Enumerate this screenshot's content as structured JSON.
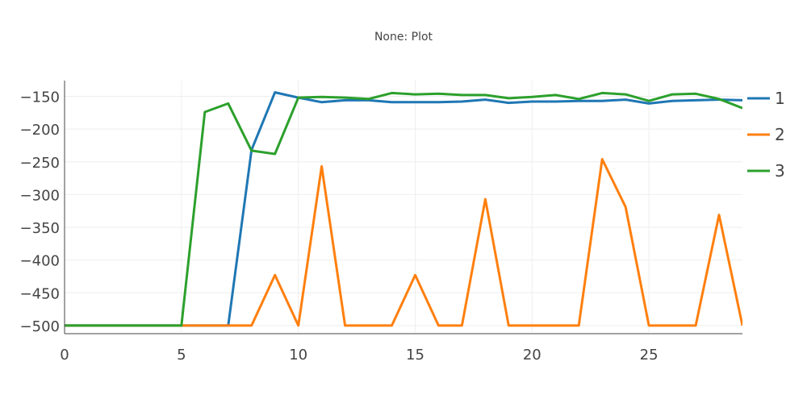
{
  "chart_data": {
    "type": "line",
    "title": "None: Plot",
    "xlabel": "",
    "ylabel": "",
    "xlim": [
      0,
      29
    ],
    "ylim": [
      -510,
      -126
    ],
    "x_ticks": [
      0,
      5,
      10,
      15,
      20,
      25
    ],
    "y_ticks": [
      -150,
      -200,
      -250,
      -300,
      -350,
      -400,
      -450,
      -500
    ],
    "x_tick_labels": [
      "0",
      "5",
      "10",
      "15",
      "20",
      "25"
    ],
    "y_tick_labels": [
      "−150",
      "−200",
      "−250",
      "−300",
      "−350",
      "−400",
      "−450",
      "−500"
    ],
    "grid": true,
    "legend_position": "right",
    "x": [
      0,
      1,
      2,
      3,
      4,
      5,
      6,
      7,
      8,
      9,
      10,
      11,
      12,
      13,
      14,
      15,
      16,
      17,
      18,
      19,
      20,
      21,
      22,
      23,
      24,
      25,
      26,
      27,
      28,
      29
    ],
    "series": [
      {
        "name": "1",
        "color": "#1f77b4",
        "values": [
          -500,
          -500,
          -500,
          -500,
          -500,
          -500,
          -500,
          -500,
          -232,
          -144,
          -152,
          -159,
          -156,
          -156,
          -159,
          -159,
          -159,
          -158,
          -155,
          -160,
          -158,
          -158,
          -157,
          -157,
          -155,
          -161,
          -157,
          -156,
          -155,
          -156
        ]
      },
      {
        "name": "2",
        "color": "#ff7f0e",
        "values": [
          -500,
          -500,
          -500,
          -500,
          -500,
          -500,
          -500,
          -500,
          -500,
          -423,
          -500,
          -257,
          -500,
          -500,
          -500,
          -423,
          -500,
          -500,
          -307,
          -500,
          -500,
          -500,
          -500,
          -246,
          -319,
          -500,
          -500,
          -500,
          -331,
          -500
        ]
      },
      {
        "name": "3",
        "color": "#2ca02c",
        "values": [
          -500,
          -500,
          -500,
          -500,
          -500,
          -500,
          -174,
          -161,
          -233,
          -238,
          -152,
          -151,
          -152,
          -154,
          -145,
          -147,
          -146,
          -148,
          -148,
          -153,
          -151,
          -148,
          -154,
          -145,
          -147,
          -157,
          -147,
          -146,
          -154,
          -168
        ]
      }
    ]
  }
}
